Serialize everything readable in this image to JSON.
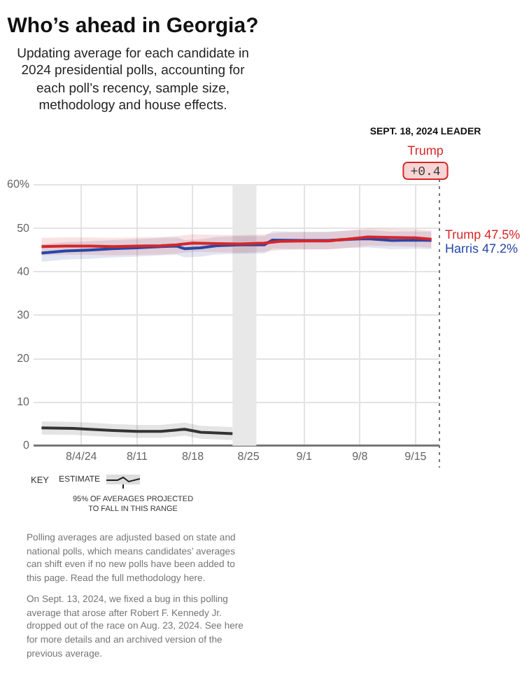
{
  "chart_data": {
    "type": "line",
    "title": "Who’s ahead in Georgia?",
    "subtitle": "Updating average for each candidate in 2024 presidential polls, accounting for each poll’s recency, sample size, methodology and house effects.",
    "xlim": [
      "2024-07-29",
      "2024-09-18"
    ],
    "xticks": [
      {
        "value": "2024-08-04",
        "label": "8/4/24"
      },
      {
        "value": "2024-08-11",
        "label": "8/11"
      },
      {
        "value": "2024-08-18",
        "label": "8/18"
      },
      {
        "value": "2024-08-25",
        "label": "8/25"
      },
      {
        "value": "2024-09-01",
        "label": "9/1"
      },
      {
        "value": "2024-09-08",
        "label": "9/8"
      },
      {
        "value": "2024-09-15",
        "label": "9/15"
      }
    ],
    "ylim": [
      0,
      60
    ],
    "yticks": [
      0,
      10,
      20,
      30,
      40,
      50,
      {
        "value": 60,
        "label": "60%"
      }
    ],
    "grid": true,
    "legend": false,
    "marker": "none",
    "line_style": "solid",
    "series": [
      {
        "name": "Trump",
        "color": "#d62728",
        "x": [
          "2024-07-30",
          "2024-08-02",
          "2024-08-05",
          "2024-08-08",
          "2024-08-11",
          "2024-08-14",
          "2024-08-16",
          "2024-08-18",
          "2024-08-21",
          "2024-08-24",
          "2024-08-27",
          "2024-08-29",
          "2024-09-01",
          "2024-09-04",
          "2024-09-07",
          "2024-09-09",
          "2024-09-12",
          "2024-09-15",
          "2024-09-17"
        ],
        "values": [
          45.8,
          45.9,
          45.9,
          45.8,
          45.9,
          46.0,
          46.2,
          46.6,
          46.5,
          46.4,
          46.6,
          47.0,
          47.1,
          47.1,
          47.6,
          48.0,
          47.9,
          47.8,
          47.5
        ],
        "lower": [
          43.8,
          43.9,
          43.9,
          43.8,
          43.9,
          44.0,
          44.2,
          44.6,
          44.5,
          44.4,
          44.6,
          45.0,
          45.1,
          45.1,
          45.6,
          46.0,
          45.9,
          45.8,
          45.5
        ],
        "upper": [
          47.8,
          47.9,
          47.9,
          47.8,
          47.9,
          48.0,
          48.2,
          48.6,
          48.5,
          48.4,
          48.6,
          49.0,
          49.1,
          49.1,
          49.6,
          50.0,
          49.9,
          49.8,
          49.5
        ],
        "value_labels": [
          null,
          null,
          null,
          null,
          null,
          null,
          null,
          null,
          null,
          null,
          null,
          null,
          null,
          null,
          null,
          null,
          null,
          null,
          "47.5%"
        ]
      },
      {
        "name": "Harris",
        "color": "#2647a8",
        "x": [
          "2024-07-30",
          "2024-08-02",
          "2024-08-05",
          "2024-08-08",
          "2024-08-11",
          "2024-08-14",
          "2024-08-16",
          "2024-08-17",
          "2024-08-19",
          "2024-08-21",
          "2024-08-24",
          "2024-08-27",
          "2024-08-28",
          "2024-09-01",
          "2024-09-04",
          "2024-09-07",
          "2024-09-09",
          "2024-09-12",
          "2024-09-15",
          "2024-09-17"
        ],
        "values": [
          44.3,
          44.8,
          45.0,
          45.3,
          45.5,
          45.8,
          45.9,
          45.3,
          45.5,
          46.0,
          46.2,
          46.2,
          47.3,
          47.2,
          47.2,
          47.5,
          47.6,
          47.2,
          47.3,
          47.2
        ],
        "lower": [
          42.3,
          42.8,
          43.0,
          43.3,
          43.5,
          43.8,
          43.9,
          43.3,
          43.5,
          44.0,
          44.2,
          44.2,
          45.3,
          45.2,
          45.2,
          45.5,
          45.6,
          45.2,
          45.3,
          45.2
        ],
        "upper": [
          46.3,
          46.8,
          47.0,
          47.3,
          47.5,
          47.8,
          47.9,
          47.3,
          47.5,
          48.0,
          48.2,
          48.2,
          49.3,
          49.2,
          49.2,
          49.5,
          49.6,
          49.2,
          49.3,
          49.2
        ],
        "value_labels": [
          null,
          null,
          null,
          null,
          null,
          null,
          null,
          null,
          null,
          null,
          null,
          null,
          null,
          null,
          null,
          null,
          null,
          null,
          null,
          "47.2%"
        ]
      },
      {
        "color": "#333333",
        "x": [
          "2024-07-30",
          "2024-08-03",
          "2024-08-05",
          "2024-08-08",
          "2024-08-11",
          "2024-08-14",
          "2024-08-17",
          "2024-08-19",
          "2024-08-23"
        ],
        "values": [
          4.1,
          4.0,
          3.8,
          3.5,
          3.3,
          3.3,
          3.8,
          3.1,
          2.8
        ],
        "lower": [
          2.6,
          2.5,
          2.3,
          2.0,
          1.8,
          1.8,
          2.3,
          1.6,
          1.3
        ],
        "upper": [
          5.6,
          5.5,
          5.3,
          5.0,
          4.8,
          4.8,
          5.3,
          4.6,
          4.3
        ]
      }
    ],
    "bands": [
      {
        "axis": "x",
        "from": "2024-08-23",
        "to": "2024-08-26",
        "color": "#e8e8e8"
      }
    ],
    "ref_lines": [
      {
        "axis": "x",
        "value": "2024-09-18",
        "color": "#777777",
        "line_style": "dotted"
      }
    ],
    "annotations": [
      "SEPT. 18, 2024 LEADER",
      "Trump",
      "+0.4",
      "KEY",
      "ESTIMATE",
      "95% OF AVERAGES PROJECTED TO FALL IN THIS RANGE",
      "Polling averages are adjusted based on state and national polls, which means candidates’ averages can shift even if no new polls have been added to this page. Read the full methodology here.",
      "On Sept. 13, 2024, we fixed a bug in this polling average that arose after Robert F. Kennedy Jr. dropped out of the race on Aug. 23, 2024. See here for more details and an archived version of the previous average."
    ]
  }
}
